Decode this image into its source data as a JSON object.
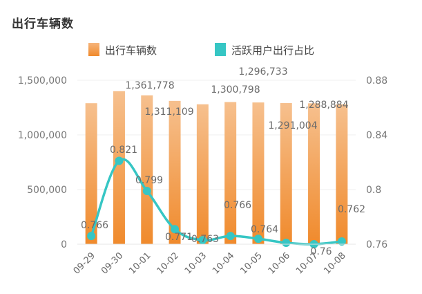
{
  "chart_data": {
    "type": "bar",
    "title": "出行车辆数",
    "categories": [
      "09-29",
      "09-30",
      "10-01",
      "10-02",
      "10-03",
      "10-04",
      "10-05",
      "10-06",
      "10-07",
      "10-08"
    ],
    "series": [
      {
        "name": "出行车辆数",
        "type": "bar",
        "axis": "left",
        "color": "#f0923a",
        "values": [
          1290000,
          1400000,
          1361778,
          1311109,
          1280000,
          1300798,
          1296733,
          1291004,
          1288884,
          1280000
        ],
        "labels": [
          "",
          "",
          "1,361,778",
          "1,311,109",
          "",
          "1,300,798",
          "1,296,733",
          "1,291,004",
          "1,288,884",
          ""
        ]
      },
      {
        "name": "活跃用户出行占比",
        "type": "line",
        "axis": "right",
        "color": "#36c6c4",
        "values": [
          0.766,
          0.821,
          0.799,
          0.771,
          0.763,
          0.766,
          0.764,
          0.761,
          0.76,
          0.762
        ],
        "labels": [
          "0.766",
          "0.821",
          "0.799",
          "0.771",
          "0.763",
          "0.766",
          "0.764",
          "",
          "0.76",
          "0.762"
        ]
      }
    ],
    "y_left": {
      "min": 0,
      "max": 1500000,
      "ticks": [
        "0",
        "500,000",
        "1,000,000",
        "1,500,000"
      ]
    },
    "y_right": {
      "min": 0.76,
      "max": 0.88,
      "ticks": [
        "0.76",
        "0.8",
        "0.84",
        "0.88"
      ]
    },
    "legend_position": "top-center",
    "grid": true
  }
}
